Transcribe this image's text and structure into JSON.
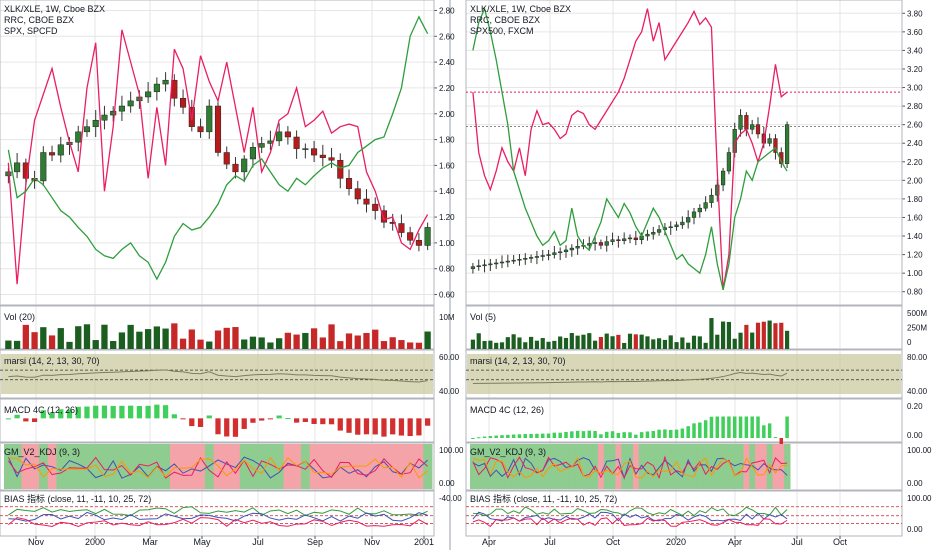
{
  "colors": {
    "up": "#26a69a",
    "upDark": "#2e7d32",
    "down": "#b71c1c",
    "pink": "#e91e63",
    "green": "#2e9e3c",
    "olive": "#c8c89a",
    "redZone": "#f4a3a8",
    "greenZone": "#8fcc8f",
    "grid": "#e6e6e6"
  },
  "left": {
    "legend": [
      "XLK/XLE, 1W, Cboe BZX",
      "RRC, CBOE BZX",
      "SPX, SPCFD"
    ],
    "yticks": [
      "2.80",
      "2.60",
      "2.40",
      "2.20",
      "2.00",
      "1.80",
      "1.60",
      "1.40",
      "1.20",
      "1.00",
      "0.80",
      "0.60"
    ],
    "panels": {
      "vol": {
        "title": "Vol (20)",
        "tick": "10M"
      },
      "marsi": {
        "title": "marsi (14, 2, 13, 30, 70)",
        "ticks": [
          "60.00",
          "40.00"
        ]
      },
      "macd": {
        "title": "MACD 4C (12, 26)"
      },
      "gm": {
        "title": "GM_V2_KDJ (9, 3)",
        "ticks": [
          "100.00",
          "0.00"
        ]
      },
      "bias": {
        "title": "BIAS 指标 (close, 11, -11, 10, 25, 72)",
        "ticks": [
          "-40.00"
        ]
      }
    },
    "xticks": [
      "Nov",
      "2000",
      "Mar",
      "May",
      "Jul",
      "Sep",
      "Nov",
      "2001"
    ]
  },
  "right": {
    "legend": [
      "XLK/XLE, 1W, Cboe BZX",
      "RRC, CBOE BZX",
      "SPX500, FXCM"
    ],
    "yticks": [
      "3.80",
      "3.60",
      "3.40",
      "3.20",
      "3.00",
      "2.80",
      "2.60",
      "2.40",
      "2.20",
      "2.00",
      "1.80",
      "1.60",
      "1.40",
      "1.20",
      "1.00",
      "0.80"
    ],
    "panels": {
      "vol": {
        "title": "Vol (5)",
        "ticks": [
          "500M",
          "250M",
          "0"
        ]
      },
      "marsi": {
        "title": "marsi (14, 2, 13, 30, 70)",
        "ticks": [
          "80.00",
          "40.00"
        ]
      },
      "macd": {
        "title": "MACD 4C (12, 26)",
        "ticks": [
          "0.20",
          "0.00"
        ]
      },
      "gm": {
        "title": "GM_V2_KDJ (9, 3)",
        "ticks": [
          "100.00",
          "0.00"
        ]
      },
      "bias": {
        "title": "BIAS 指标 (close, 11, -11, 10, 25, 72)",
        "ticks": [
          "100.00",
          "0.00"
        ]
      }
    },
    "xticks": [
      "Apr",
      "Jul",
      "Oct",
      "2020",
      "Apr",
      "Jul",
      "Oct"
    ]
  },
  "chart_data": [
    {
      "type": "candlestick",
      "title": "XLK/XLE, 1W, Cboe BZX",
      "ylim": [
        0.55,
        2.85
      ],
      "series": [
        {
          "name": "XLK/XLE",
          "close": [
            1.55,
            1.62,
            1.5,
            1.48,
            1.7,
            1.68,
            1.76,
            1.78,
            1.86,
            1.9,
            1.95,
            1.99,
            2.02,
            2.06,
            2.1,
            2.13,
            2.17,
            2.23,
            2.26,
            2.12,
            2.05,
            1.9,
            1.86,
            2.06,
            1.7,
            1.61,
            1.55,
            1.65,
            1.74,
            1.77,
            1.79,
            1.86,
            1.82,
            1.73,
            1.73,
            1.68,
            1.66,
            1.64,
            1.5,
            1.42,
            1.34,
            1.3,
            1.25,
            1.16,
            1.15,
            1.08,
            1.02,
            0.98,
            1.12
          ]
        },
        {
          "name": "RRC",
          "values": [
            1.62,
            0.68,
            1.45,
            1.95,
            2.15,
            2.35,
            2.05,
            1.78,
            1.55,
            2.2,
            2.55,
            1.4,
            1.9,
            2.65,
            2.4,
            2.15,
            1.5,
            2.05,
            1.6,
            2.5,
            2.35,
            1.95,
            2.45,
            2.25,
            2.1,
            2.4,
            2.05,
            1.7,
            2.05,
            1.55,
            1.7,
            1.95,
            2.0,
            2.2,
            1.9,
            1.95,
            2.02,
            1.85,
            1.9,
            1.92,
            1.9,
            1.55,
            1.4,
            1.18,
            1.2,
            1.0,
            0.95,
            1.1,
            1.22
          ]
        },
        {
          "name": "SPX",
          "values": [
            1.72,
            1.35,
            1.4,
            1.5,
            1.45,
            1.35,
            1.25,
            1.2,
            1.12,
            1.05,
            0.95,
            0.9,
            0.88,
            0.95,
            1.0,
            0.9,
            0.85,
            0.72,
            0.85,
            1.05,
            1.15,
            1.1,
            1.12,
            1.2,
            1.3,
            1.45,
            1.52,
            1.48,
            1.6,
            1.65,
            1.55,
            1.45,
            1.4,
            1.5,
            1.45,
            1.52,
            1.58,
            1.62,
            1.58,
            1.6,
            1.7,
            1.75,
            1.8,
            1.82,
            2.0,
            2.2,
            2.6,
            2.75,
            2.62
          ]
        }
      ]
    },
    {
      "type": "candlestick",
      "title": "XLK/XLE, 1W, Cboe BZX",
      "ylim": [
        0.7,
        3.9
      ],
      "series": [
        {
          "name": "XLK/XLE",
          "close": [
            1.07,
            1.08,
            1.09,
            1.1,
            1.11,
            1.12,
            1.13,
            1.14,
            1.15,
            1.16,
            1.17,
            1.18,
            1.19,
            1.2,
            1.22,
            1.23,
            1.25,
            1.27,
            1.29,
            1.3,
            1.32,
            1.33,
            1.3,
            1.34,
            1.36,
            1.35,
            1.37,
            1.38,
            1.36,
            1.4,
            1.42,
            1.44,
            1.47,
            1.49,
            1.5,
            1.52,
            1.55,
            1.6,
            1.66,
            1.7,
            1.76,
            1.84,
            1.95,
            2.1,
            2.3,
            2.55,
            2.7,
            2.55,
            2.6,
            2.5,
            2.4,
            2.45,
            2.3,
            2.18,
            2.6
          ]
        },
        {
          "name": "RRC",
          "values": [
            2.95,
            2.3,
            2.05,
            1.9,
            2.1,
            2.35,
            2.2,
            2.1,
            2.35,
            2.05,
            2.55,
            2.75,
            2.6,
            2.62,
            2.55,
            2.45,
            2.5,
            2.7,
            2.75,
            2.72,
            2.6,
            2.55,
            2.65,
            2.75,
            2.85,
            2.95,
            3.1,
            3.3,
            3.5,
            3.6,
            3.85,
            3.5,
            3.7,
            3.3,
            3.4,
            3.5,
            3.6,
            3.7,
            3.82,
            3.68,
            3.75,
            3.65,
            2.1,
            0.82,
            1.2,
            2.4,
            2.5,
            2.55,
            2.4,
            2.2,
            2.4,
            2.8,
            3.25,
            2.9,
            2.95
          ]
        },
        {
          "name": "SPX500",
          "values": [
            3.4,
            3.7,
            3.85,
            3.6,
            3.3,
            2.95,
            2.6,
            2.1,
            1.9,
            1.7,
            1.55,
            1.4,
            1.3,
            1.35,
            1.45,
            1.3,
            1.35,
            1.7,
            1.4,
            1.3,
            1.25,
            1.4,
            1.55,
            1.8,
            1.7,
            1.6,
            1.75,
            1.65,
            1.5,
            1.4,
            1.55,
            1.7,
            1.6,
            1.45,
            1.3,
            1.15,
            1.2,
            1.1,
            1.05,
            1.0,
            1.2,
            1.5,
            1.1,
            0.82,
            1.1,
            1.6,
            1.8,
            2.1,
            2.0,
            2.2,
            2.25,
            2.3,
            2.35,
            2.2,
            2.1
          ]
        }
      ]
    }
  ]
}
